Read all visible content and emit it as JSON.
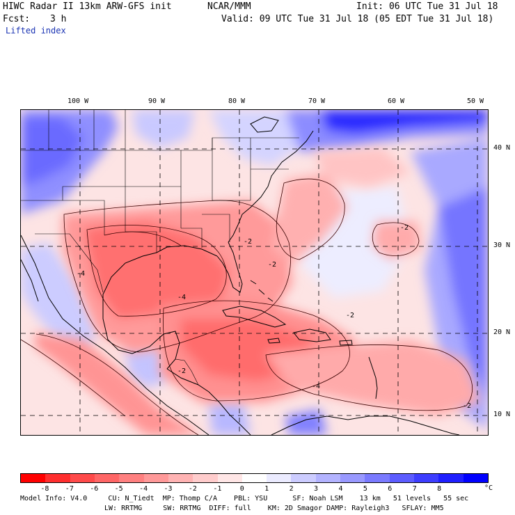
{
  "header": {
    "title": "HIWC Radar II 13km ARW-GFS init",
    "org": "NCAR/MMM",
    "init": "Init: 06 UTC Tue 31 Jul 18",
    "fcst_label": "Fcst:",
    "fcst_value": "3 h",
    "valid": "Valid: 09 UTC Tue 31 Jul 18 (05 EDT Tue 31 Jul 18)",
    "field": "Lifted index"
  },
  "map": {
    "lon_labels": [
      "100 W",
      "90 W",
      "80 W",
      "70 W",
      "60 W",
      "50 W"
    ],
    "lat_labels": [
      "40 N",
      "30 N",
      "20 N",
      "10 N"
    ],
    "contour_labels": [
      "-2",
      "-2",
      "-2",
      "-2",
      "-2",
      "-2",
      "-4",
      "-4",
      "-4"
    ]
  },
  "colorbar": {
    "labels": [
      "-8",
      "-7",
      "-6",
      "-5",
      "-4",
      "-3",
      "-2",
      "-1",
      "0",
      "1",
      "2",
      "3",
      "4",
      "5",
      "6",
      "7",
      "8"
    ],
    "unit": "°C",
    "colors": [
      "#ff0000",
      "#ff2e2e",
      "#ff4a4a",
      "#ff6666",
      "#ff8080",
      "#ff9999",
      "#ffb3b3",
      "#ffcccc",
      "#ffe6e6",
      "#ffffff",
      "#ebebff",
      "#ccccff",
      "#b3b3ff",
      "#9999ff",
      "#7a7aff",
      "#5c5cff",
      "#3d3dff",
      "#1f1fff",
      "#0000ff"
    ]
  },
  "footer": {
    "line1": "Model Info: V4.0     CU: N_Tiedt  MP: Thomp C/A    PBL: YSU      SF: Noah LSM    13 km   51 levels   55 sec",
    "line2": "LW: RRTMG     SW: RRTMG  DIFF: full    KM: 2D Smagor DAMP: Rayleigh3   SFLAY: MM5"
  }
}
